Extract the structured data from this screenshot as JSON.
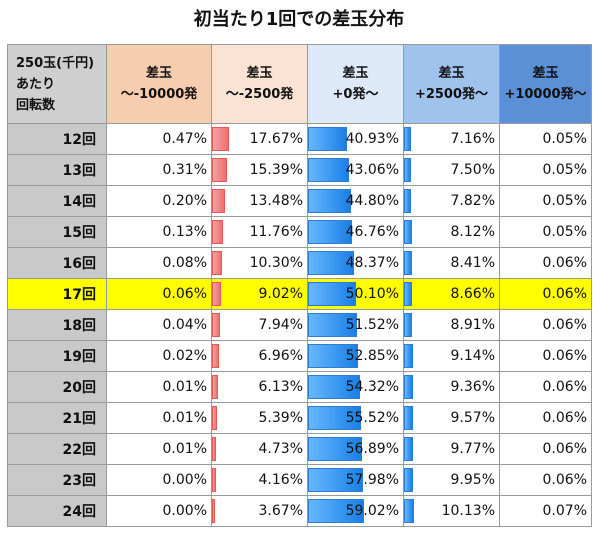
{
  "title": "初当たり1回での差玉分布",
  "corner": [
    "250玉(千円)",
    "あたり",
    "回転数"
  ],
  "columns": [
    {
      "l1": "差玉",
      "l2": "～-10000発",
      "bg": "#f7cdb0",
      "bar": "none"
    },
    {
      "l1": "差玉",
      "l2": "～-2500発",
      "bg": "#fbe3d3",
      "bar": "red"
    },
    {
      "l1": "差玉",
      "l2": "+0発～",
      "bg": "#dde9f8",
      "bar": "blue"
    },
    {
      "l1": "差玉",
      "l2": "+2500発～",
      "bg": "#9fc3ec",
      "bar": "blue"
    },
    {
      "l1": "差玉",
      "l2": "+10000発～",
      "bg": "#5b8fd6",
      "bar": "none"
    }
  ],
  "highlight_row": "17回",
  "highlight_color": "#ffff00",
  "rows": [
    {
      "label": "12回",
      "values": [
        "0.47%",
        "17.67%",
        "40.93%",
        "7.16%",
        "0.05%"
      ]
    },
    {
      "label": "13回",
      "values": [
        "0.31%",
        "15.39%",
        "43.06%",
        "7.50%",
        "0.05%"
      ]
    },
    {
      "label": "14回",
      "values": [
        "0.20%",
        "13.48%",
        "44.80%",
        "7.82%",
        "0.05%"
      ]
    },
    {
      "label": "15回",
      "values": [
        "0.13%",
        "11.76%",
        "46.76%",
        "8.12%",
        "0.05%"
      ]
    },
    {
      "label": "16回",
      "values": [
        "0.08%",
        "10.30%",
        "48.37%",
        "8.41%",
        "0.06%"
      ]
    },
    {
      "label": "17回",
      "values": [
        "0.06%",
        "9.02%",
        "50.10%",
        "8.66%",
        "0.06%"
      ]
    },
    {
      "label": "18回",
      "values": [
        "0.04%",
        "7.94%",
        "51.52%",
        "8.91%",
        "0.06%"
      ]
    },
    {
      "label": "19回",
      "values": [
        "0.02%",
        "6.96%",
        "52.85%",
        "9.14%",
        "0.06%"
      ]
    },
    {
      "label": "20回",
      "values": [
        "0.01%",
        "6.13%",
        "54.32%",
        "9.36%",
        "0.06%"
      ]
    },
    {
      "label": "21回",
      "values": [
        "0.01%",
        "5.39%",
        "55.52%",
        "9.57%",
        "0.06%"
      ]
    },
    {
      "label": "22回",
      "values": [
        "0.01%",
        "4.73%",
        "56.89%",
        "9.77%",
        "0.06%"
      ]
    },
    {
      "label": "23回",
      "values": [
        "0.00%",
        "4.16%",
        "57.98%",
        "9.95%",
        "0.06%"
      ]
    },
    {
      "label": "24回",
      "values": [
        "0.00%",
        "3.67%",
        "59.02%",
        "10.13%",
        "0.07%"
      ]
    }
  ]
}
